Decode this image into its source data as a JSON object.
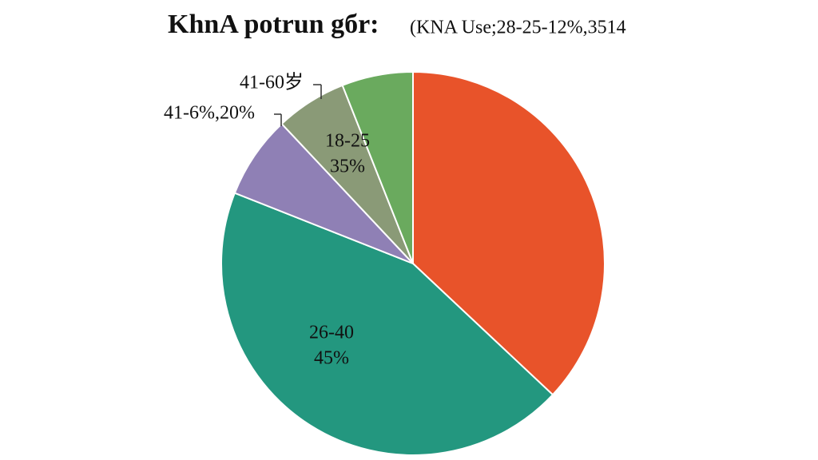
{
  "chart_data": {
    "type": "pie",
    "title": "KhnA potrun gбr:",
    "subtitle": "(KNA Use;28-25-12%,3514",
    "values": [
      37,
      44,
      7,
      6,
      6
    ],
    "colors": [
      "#e8532a",
      "#23977f",
      "#8f80b5",
      "#8a9a77",
      "#6aaa5e"
    ],
    "annotations": [
      "41-60岁",
      "41-6%,20%",
      "18-25",
      "35%",
      "26-40",
      "45%"
    ]
  }
}
